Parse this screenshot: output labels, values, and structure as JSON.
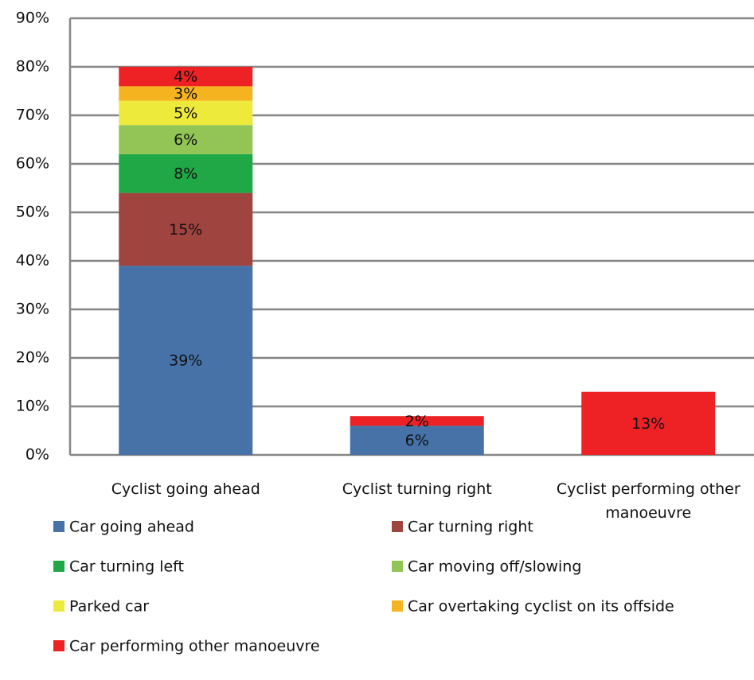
{
  "chart_data": {
    "type": "stacked-bar",
    "categories": [
      "Cyclist going ahead",
      "Cyclist turning right",
      "Cyclist performing other manoeuvre"
    ],
    "series": [
      {
        "name": "Car going ahead",
        "color": "#4672a8",
        "values": [
          39,
          6,
          null
        ],
        "value_labels": [
          "39%",
          "6%",
          null
        ]
      },
      {
        "name": "Car turning right",
        "color": "#a0443f",
        "values": [
          15,
          null,
          null
        ],
        "value_labels": [
          "15%",
          null,
          null
        ]
      },
      {
        "name": "Car turning left",
        "color": "#21a846",
        "values": [
          8,
          null,
          null
        ],
        "value_labels": [
          "8%",
          null,
          null
        ]
      },
      {
        "name": "Car moving off/slowing",
        "color": "#92c555",
        "values": [
          6,
          null,
          null
        ],
        "value_labels": [
          "6%",
          null,
          null
        ]
      },
      {
        "name": "Parked car",
        "color": "#eeea3c",
        "values": [
          5,
          null,
          null
        ],
        "value_labels": [
          "5%",
          null,
          null
        ]
      },
      {
        "name": "Car overtaking cyclist on its offside",
        "color": "#f6b320",
        "values": [
          3,
          null,
          null
        ],
        "value_labels": [
          "3%",
          null,
          null
        ]
      },
      {
        "name": "Car performing other manoeuvre",
        "color": "#ee2125",
        "values": [
          4,
          2,
          13
        ],
        "value_labels": [
          "4%",
          "2%",
          "13%"
        ]
      }
    ],
    "ylim": [
      0,
      90
    ],
    "yticks": [
      {
        "value": 0,
        "label": "0%"
      },
      {
        "value": 10,
        "label": "10%"
      },
      {
        "value": 20,
        "label": "20%"
      },
      {
        "value": 30,
        "label": "30%"
      },
      {
        "value": 40,
        "label": "40%"
      },
      {
        "value": 50,
        "label": "50%"
      },
      {
        "value": 60,
        "label": "60%"
      },
      {
        "value": 70,
        "label": "70%"
      },
      {
        "value": 80,
        "label": "80%"
      },
      {
        "value": 90,
        "label": "90%"
      }
    ],
    "grid": true
  }
}
